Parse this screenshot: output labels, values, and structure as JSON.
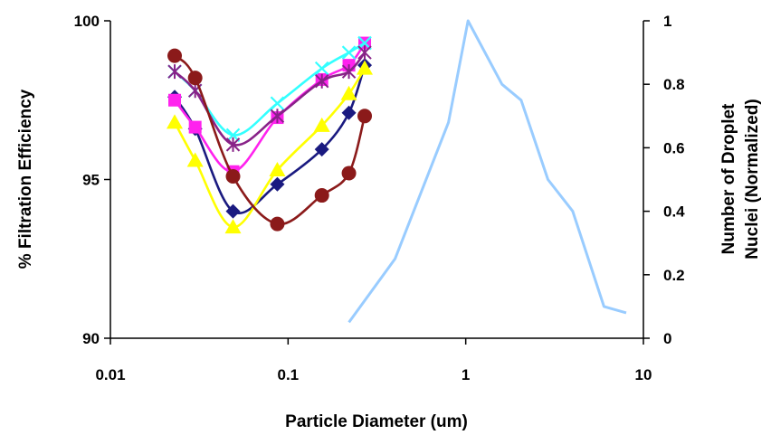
{
  "chart_data": {
    "type": "line",
    "xlabel": "Particle Diameter (um)",
    "ylabel_left": "% Filtration Efficiency",
    "ylabel_right_lines": [
      "Number of Droplet",
      "Nuclei (Normalized)"
    ],
    "x_scale": "log",
    "xlim": [
      0.01,
      10
    ],
    "ylim_left": [
      90,
      100
    ],
    "ylim_right": [
      0,
      1
    ],
    "x_ticks": [
      0.01,
      0.1,
      1,
      10
    ],
    "x_tick_labels": [
      "0.01",
      "0.1",
      "1",
      "10"
    ],
    "y_left_ticks": [
      90,
      95,
      100
    ],
    "y_left_tick_labels": [
      "90",
      "95",
      "100"
    ],
    "y_right_ticks": [
      0,
      0.2,
      0.4,
      0.6,
      0.8,
      1
    ],
    "y_right_tick_labels": [
      "0",
      "0.2",
      "0.4",
      "0.6",
      "0.8",
      "1"
    ],
    "grid": false,
    "legend": "none",
    "series": [
      {
        "color": "#1a1a80",
        "marker": "diamond",
        "axis": "left",
        "smooth": true,
        "x": [
          0.023,
          0.03,
          0.049,
          0.087,
          0.155,
          0.22,
          0.27
        ],
        "y": [
          97.6,
          96.6,
          94.0,
          94.85,
          95.95,
          97.1,
          98.6
        ]
      },
      {
        "color": "#ff22ee",
        "marker": "square",
        "axis": "left",
        "smooth": true,
        "x": [
          0.023,
          0.03,
          0.049,
          0.087,
          0.155,
          0.22,
          0.27
        ],
        "y": [
          97.5,
          96.65,
          95.25,
          96.95,
          98.15,
          98.6,
          99.3
        ]
      },
      {
        "color": "#ffff00",
        "marker": "triangle",
        "axis": "left",
        "smooth": true,
        "x": [
          0.023,
          0.03,
          0.049,
          0.087,
          0.155,
          0.22,
          0.27
        ],
        "y": [
          96.8,
          95.6,
          93.5,
          95.3,
          96.7,
          97.7,
          98.5
        ]
      },
      {
        "color": "#33ffff",
        "marker": "x",
        "axis": "left",
        "smooth": true,
        "x": [
          0.023,
          0.03,
          0.049,
          0.087,
          0.155,
          0.22,
          0.27
        ],
        "y": [
          98.4,
          97.8,
          96.4,
          97.4,
          98.5,
          99.0,
          99.3
        ]
      },
      {
        "color": "#882288",
        "marker": "asterisk",
        "axis": "left",
        "smooth": true,
        "x": [
          0.023,
          0.03,
          0.049,
          0.087,
          0.155,
          0.22,
          0.27
        ],
        "y": [
          98.4,
          97.8,
          96.1,
          97.0,
          98.1,
          98.4,
          99.0
        ]
      },
      {
        "color": "#8b1a1a",
        "marker": "circle",
        "axis": "left",
        "smooth": true,
        "x": [
          0.023,
          0.03,
          0.049,
          0.087,
          0.155,
          0.22,
          0.27
        ],
        "y": [
          98.9,
          98.2,
          95.1,
          93.6,
          94.5,
          95.2,
          97.0
        ]
      },
      {
        "color": "#99ccff",
        "marker": "none",
        "axis": "right",
        "smooth": false,
        "x": [
          0.22,
          0.4,
          0.8,
          1.03,
          1.6,
          2.05,
          2.9,
          4.0,
          6.0,
          8.0
        ],
        "y": [
          0.05,
          0.25,
          0.68,
          1.0,
          0.8,
          0.75,
          0.5,
          0.4,
          0.1,
          0.08
        ]
      }
    ]
  }
}
